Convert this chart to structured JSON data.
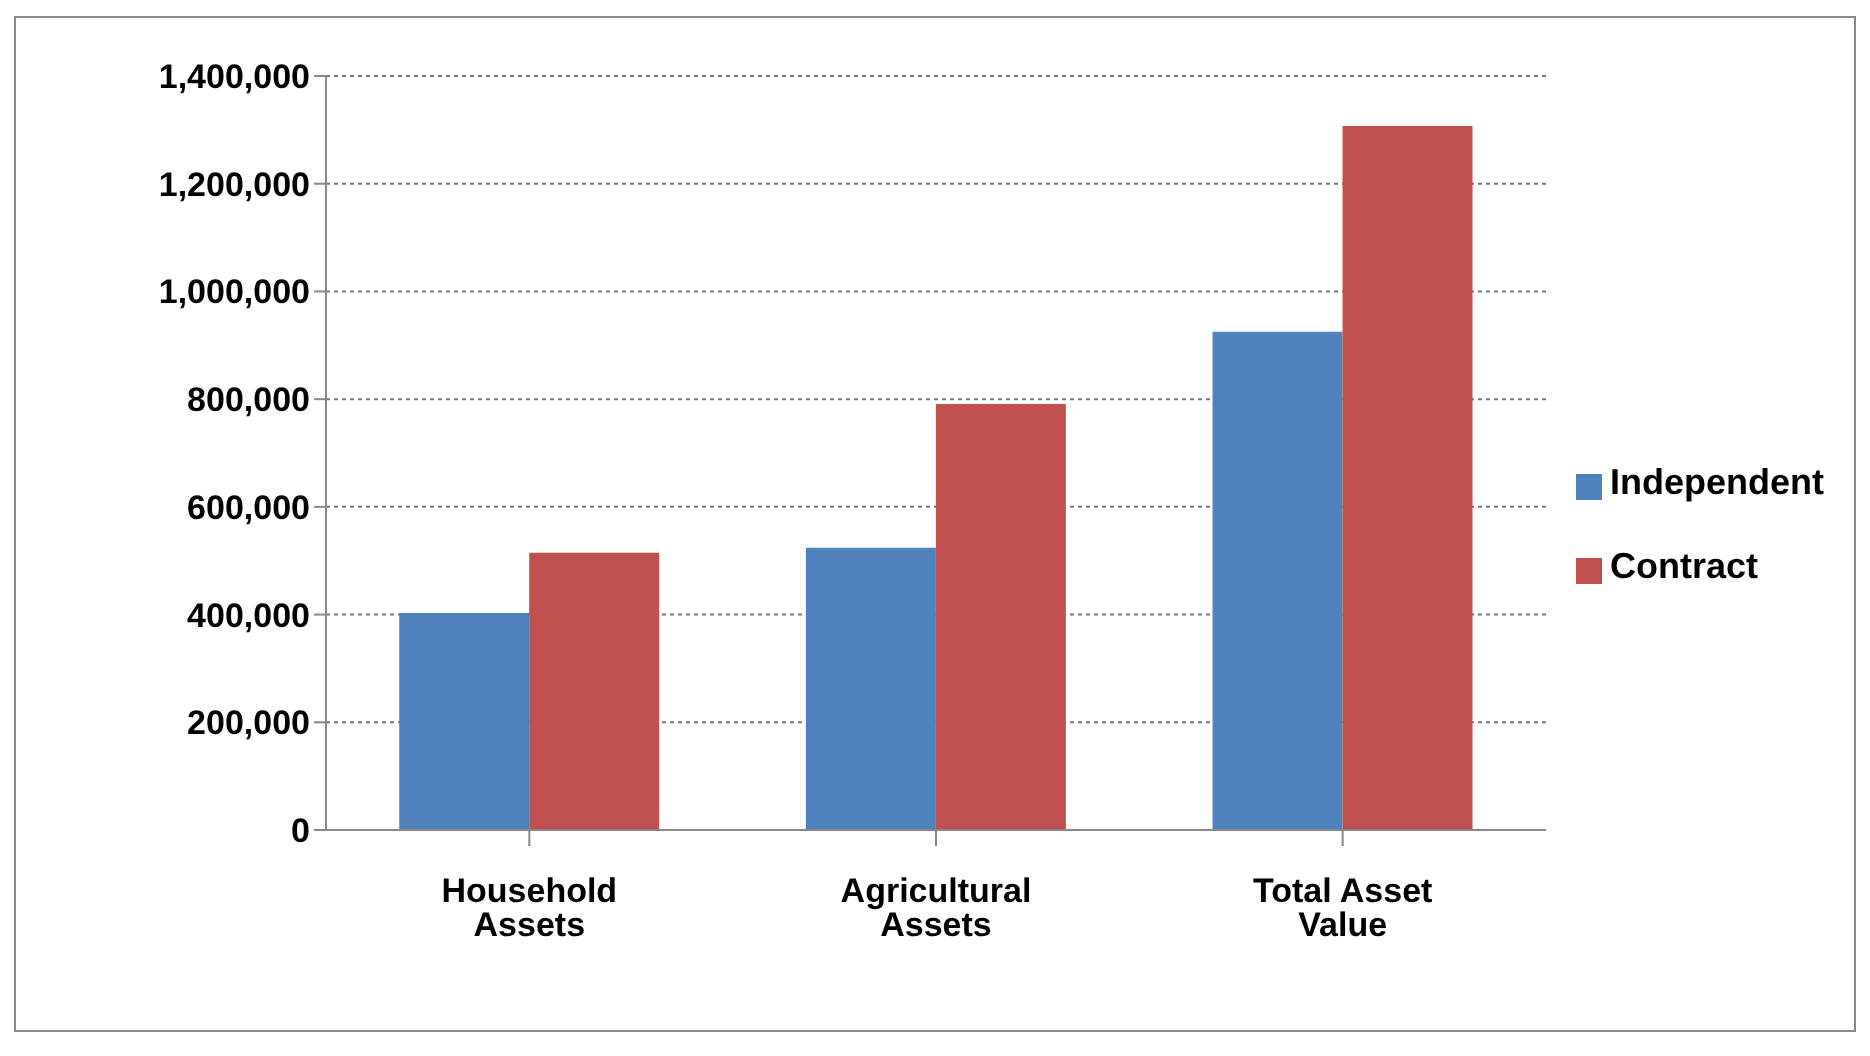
{
  "chart_data": {
    "type": "bar",
    "categories": [
      "Household Assets",
      "Agricultural Assets",
      "Total Asset Value"
    ],
    "series": [
      {
        "name": "Independent",
        "color": "#4f81bd",
        "values": [
          403000,
          524000,
          925000
        ]
      },
      {
        "name": "Contract",
        "color": "#c0504d",
        "values": [
          515000,
          791000,
          1307000
        ]
      }
    ],
    "ylim": [
      0,
      1400000
    ],
    "yticks": [
      0,
      {
        "value": 200000,
        "label": "200,000"
      },
      {
        "value": 400000,
        "label": "400,000"
      },
      {
        "value": 600000,
        "label": "600,000"
      },
      {
        "value": 800000,
        "label": "800,000"
      },
      {
        "value": 1000000,
        "label": "1,000,000"
      },
      {
        "value": 1200000,
        "label": "1,200,000"
      },
      {
        "value": 1400000,
        "label": "1,400,000"
      }
    ],
    "grid": "y",
    "legend": "right"
  }
}
